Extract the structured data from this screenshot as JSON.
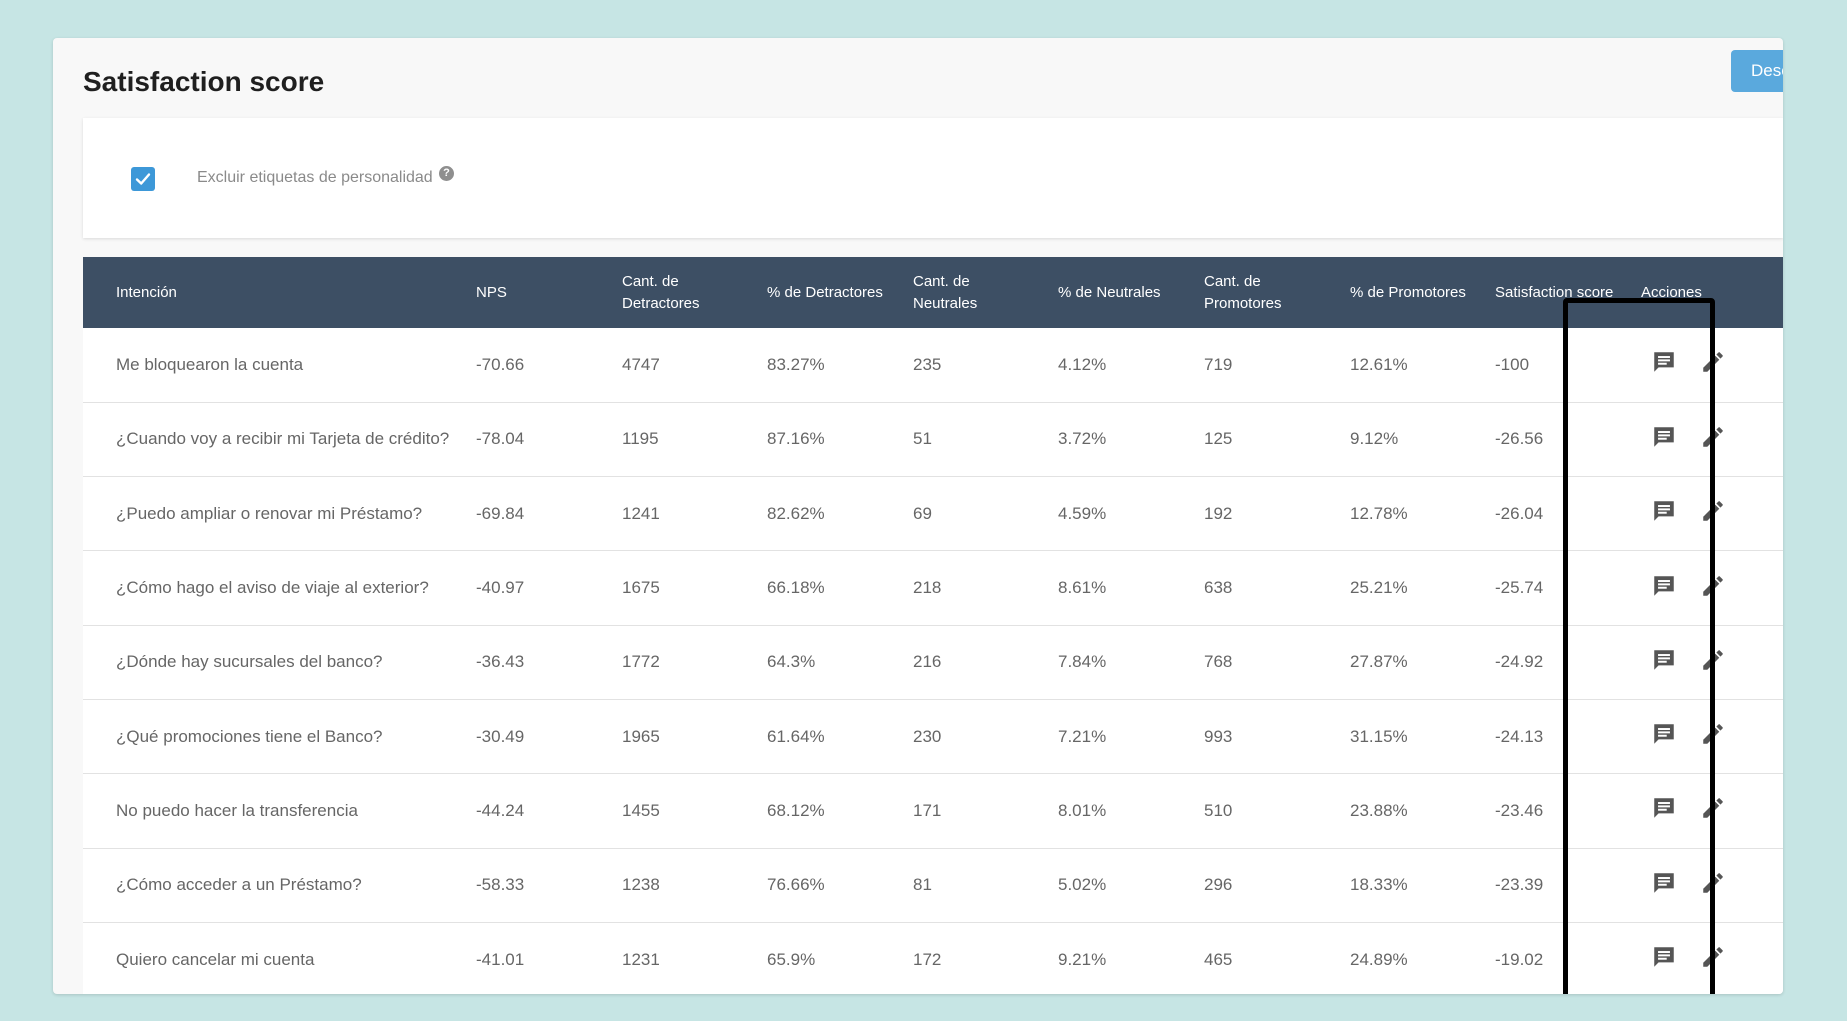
{
  "page": {
    "title": "Satisfaction score",
    "download_label": "Desc"
  },
  "filter": {
    "exclude_label": "Excluir etiquetas de personalidad",
    "exclude_checked": true,
    "help_glyph": "?"
  },
  "table": {
    "headers": {
      "intent": "Intención",
      "nps": "NPS",
      "det_count": [
        "Cant. de",
        "Detractores"
      ],
      "det_pct": "% de Detractores",
      "neu_count": [
        "Cant. de",
        "Neutrales"
      ],
      "neu_pct": "% de Neutrales",
      "pro_count": [
        "Cant. de",
        "Promotores"
      ],
      "pro_pct": "% de Promotores",
      "score": "Satisfaction score",
      "actions": "Acciones"
    },
    "rows": [
      {
        "intent": "Me bloquearon la cuenta",
        "nps": "-70.66",
        "det_count": "4747",
        "det_pct": "83.27%",
        "neu_count": "235",
        "neu_pct": "4.12%",
        "pro_count": "719",
        "pro_pct": "12.61%",
        "score": "-100"
      },
      {
        "intent": "¿Cuando voy a recibir mi Tarjeta de crédito?",
        "nps": "-78.04",
        "det_count": "1195",
        "det_pct": "87.16%",
        "neu_count": "51",
        "neu_pct": "3.72%",
        "pro_count": "125",
        "pro_pct": "9.12%",
        "score": "-26.56"
      },
      {
        "intent": "¿Puedo ampliar o renovar mi Préstamo?",
        "nps": "-69.84",
        "det_count": "1241",
        "det_pct": "82.62%",
        "neu_count": "69",
        "neu_pct": "4.59%",
        "pro_count": "192",
        "pro_pct": "12.78%",
        "score": "-26.04"
      },
      {
        "intent": "¿Cómo hago el aviso de viaje al exterior?",
        "nps": "-40.97",
        "det_count": "1675",
        "det_pct": "66.18%",
        "neu_count": "218",
        "neu_pct": "8.61%",
        "pro_count": "638",
        "pro_pct": "25.21%",
        "score": "-25.74"
      },
      {
        "intent": "¿Dónde hay sucursales del banco?",
        "nps": "-36.43",
        "det_count": "1772",
        "det_pct": "64.3%",
        "neu_count": "216",
        "neu_pct": "7.84%",
        "pro_count": "768",
        "pro_pct": "27.87%",
        "score": "-24.92"
      },
      {
        "intent": "¿Qué promociones tiene el Banco?",
        "nps": "-30.49",
        "det_count": "1965",
        "det_pct": "61.64%",
        "neu_count": "230",
        "neu_pct": "7.21%",
        "pro_count": "993",
        "pro_pct": "31.15%",
        "score": "-24.13"
      },
      {
        "intent": "No puedo hacer la transferencia",
        "nps": "-44.24",
        "det_count": "1455",
        "det_pct": "68.12%",
        "neu_count": "171",
        "neu_pct": "8.01%",
        "pro_count": "510",
        "pro_pct": "23.88%",
        "score": "-23.46"
      },
      {
        "intent": "¿Cómo acceder a un Préstamo?",
        "nps": "-58.33",
        "det_count": "1238",
        "det_pct": "76.66%",
        "neu_count": "81",
        "neu_pct": "5.02%",
        "pro_count": "296",
        "pro_pct": "18.33%",
        "score": "-23.39"
      },
      {
        "intent": "Quiero cancelar mi cuenta",
        "nps": "-41.01",
        "det_count": "1231",
        "det_pct": "65.9%",
        "neu_count": "172",
        "neu_pct": "9.21%",
        "pro_count": "465",
        "pro_pct": "24.89%",
        "score": "-19.02"
      }
    ],
    "row_actions": [
      {
        "icon": "comment-icon",
        "name": "comment-button"
      },
      {
        "icon": "pencil-icon",
        "name": "edit-button"
      }
    ]
  },
  "colors": {
    "background": "#c6e5e4",
    "header_bg": "#3d4f64",
    "accent_blue": "#3d98d8",
    "button_blue": "#5aa9dd",
    "cell_text": "#666666",
    "icon_gray": "#555555"
  }
}
